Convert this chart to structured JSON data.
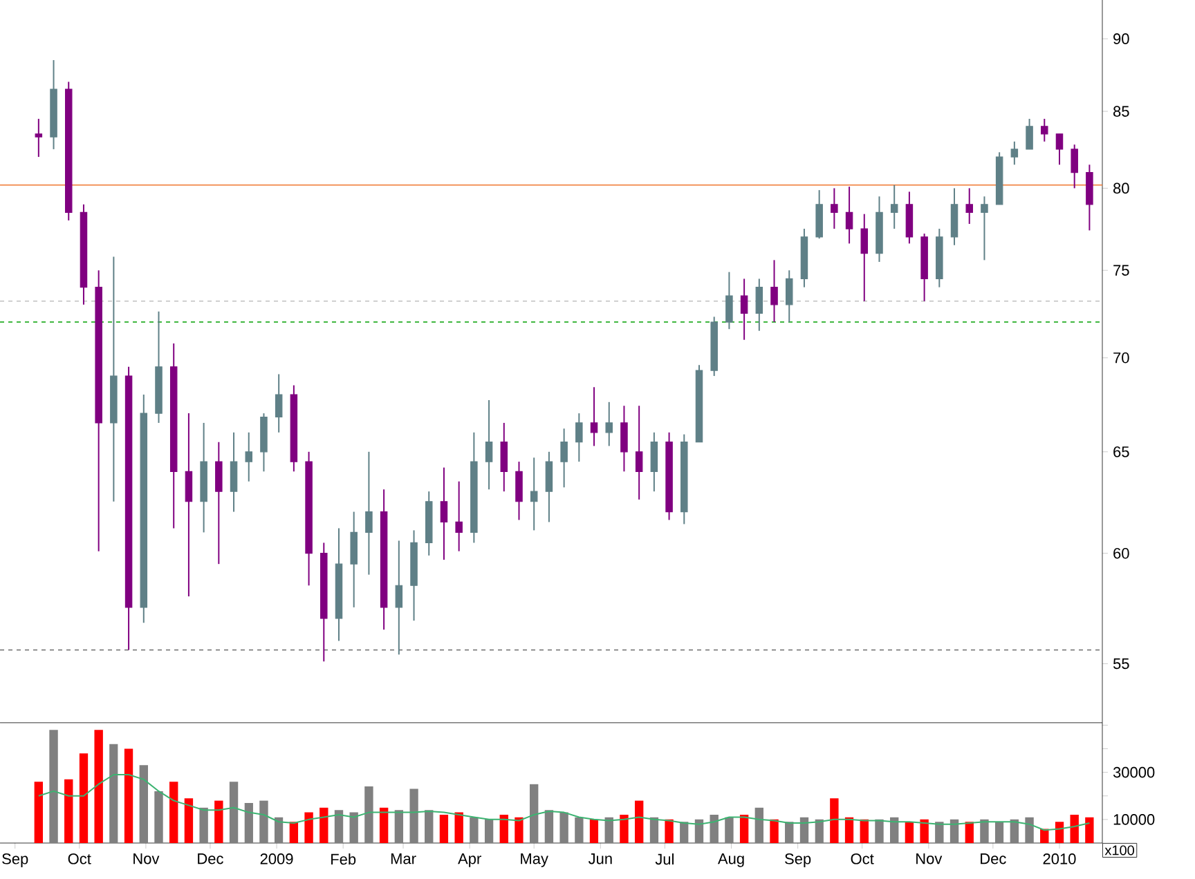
{
  "chart_data": [
    {
      "type": "candlestick",
      "log": "y",
      "tick_labels": "y",
      "x": [
        "2008-09-12",
        "2008-09-19",
        "2008-09-26",
        "2008-10-03",
        "2008-10-10",
        "2008-10-17",
        "2008-10-24",
        "2008-10-31",
        "2008-11-07",
        "2008-11-14",
        "2008-11-21",
        "2008-11-28",
        "2008-12-05",
        "2008-12-12",
        "2008-12-19",
        "2008-12-26",
        "2009-01-02",
        "2009-01-09",
        "2009-01-16",
        "2009-01-23",
        "2009-01-30",
        "2009-02-06",
        "2009-02-13",
        "2009-02-20",
        "2009-02-27",
        "2009-03-06",
        "2009-03-13",
        "2009-03-20",
        "2009-03-27",
        "2009-04-03",
        "2009-04-10",
        "2009-04-17",
        "2009-04-24",
        "2009-05-01",
        "2009-05-08",
        "2009-05-15",
        "2009-05-22",
        "2009-05-29",
        "2009-06-05",
        "2009-06-12",
        "2009-06-19",
        "2009-06-26",
        "2009-07-03",
        "2009-07-10",
        "2009-07-17",
        "2009-07-24",
        "2009-07-31",
        "2009-08-07",
        "2009-08-14",
        "2009-08-21",
        "2009-08-28",
        "2009-09-04",
        "2009-09-11",
        "2009-09-18",
        "2009-09-25",
        "2009-10-02",
        "2009-10-09",
        "2009-10-16",
        "2009-10-23",
        "2009-10-30",
        "2009-11-06",
        "2009-11-13",
        "2009-11-20",
        "2009-11-27",
        "2009-12-04",
        "2009-12-11",
        "2009-12-18",
        "2009-12-25",
        "2010-01-01",
        "2010-01-08",
        "2010-01-15"
      ],
      "ohlc": [
        [
          83.5,
          84.5,
          82,
          83.3
        ],
        [
          83.3,
          88.5,
          82.5,
          86.5
        ],
        [
          86.5,
          87,
          78,
          78.5
        ],
        [
          78.5,
          79,
          73,
          74
        ],
        [
          74,
          75,
          60.1,
          66.5
        ],
        [
          66.5,
          75.8,
          62.5,
          69
        ],
        [
          69,
          69.5,
          55.6,
          57.5
        ],
        [
          57.5,
          68,
          56.8,
          67
        ],
        [
          67,
          72.6,
          66.5,
          69.5
        ],
        [
          69.5,
          70.8,
          61.2,
          64
        ],
        [
          64,
          67,
          58,
          62.5
        ],
        [
          62.5,
          66.5,
          61,
          64.5
        ],
        [
          64.5,
          65.5,
          59.5,
          63
        ],
        [
          63,
          66,
          62,
          64.5
        ],
        [
          64.5,
          66,
          63.5,
          65
        ],
        [
          65,
          67,
          64,
          66.8
        ],
        [
          66.8,
          69.1,
          66,
          68
        ],
        [
          68,
          68.5,
          64,
          64.5
        ],
        [
          64.5,
          65,
          58.5,
          60
        ],
        [
          60,
          60.5,
          55.1,
          57
        ],
        [
          57,
          61.2,
          56,
          59.5
        ],
        [
          59.5,
          62,
          57.5,
          61
        ],
        [
          61,
          65,
          59,
          62
        ],
        [
          62,
          63.1,
          56.5,
          57.5
        ],
        [
          57.5,
          60.6,
          55.4,
          58.5
        ],
        [
          58.5,
          61.1,
          56.9,
          60.5
        ],
        [
          60.5,
          63,
          59.9,
          62.5
        ],
        [
          62.5,
          64.2,
          59.7,
          61.5
        ],
        [
          61.5,
          63.5,
          60.1,
          61
        ],
        [
          61,
          66,
          60.5,
          64.5
        ],
        [
          64.5,
          67.7,
          63.1,
          65.5
        ],
        [
          65.5,
          66.5,
          63,
          64
        ],
        [
          64,
          64.5,
          61.6,
          62.5
        ],
        [
          62.5,
          64.7,
          61.1,
          63
        ],
        [
          63,
          65,
          61.5,
          64.5
        ],
        [
          64.5,
          66.2,
          63.2,
          65.5
        ],
        [
          65.5,
          67,
          64.5,
          66.5
        ],
        [
          66.5,
          68.4,
          65.3,
          66
        ],
        [
          66,
          67.6,
          65.3,
          66.5
        ],
        [
          66.5,
          67.4,
          64,
          65
        ],
        [
          65,
          67.4,
          62.6,
          64
        ],
        [
          64,
          66,
          63,
          65.5
        ],
        [
          65.5,
          66,
          61.6,
          62
        ],
        [
          62,
          65.9,
          61.4,
          65.5
        ],
        [
          65.5,
          69.6,
          65.5,
          69.3
        ],
        [
          69.3,
          72.3,
          69,
          72
        ],
        [
          72,
          74.9,
          71.6,
          73.5
        ],
        [
          73.5,
          74.5,
          71,
          72.5
        ],
        [
          72.5,
          74.5,
          71.5,
          74
        ],
        [
          74,
          75.6,
          72,
          73
        ],
        [
          73,
          75,
          72,
          74.5
        ],
        [
          74.5,
          77.5,
          74,
          77
        ],
        [
          77,
          79.9,
          76.9,
          79
        ],
        [
          79,
          80,
          77.5,
          78.5
        ],
        [
          78.5,
          80.1,
          76.6,
          77.5
        ],
        [
          77.5,
          78.4,
          73.2,
          76
        ],
        [
          76,
          79.5,
          75.5,
          78.5
        ],
        [
          78.5,
          80.2,
          77.5,
          79
        ],
        [
          79,
          79.8,
          76.6,
          77
        ],
        [
          77,
          77.2,
          73.2,
          74.5
        ],
        [
          74.5,
          77.5,
          74,
          77
        ],
        [
          77,
          80,
          76.5,
          79
        ],
        [
          79,
          80,
          77.8,
          78.5
        ],
        [
          78.5,
          79.5,
          75.6,
          79
        ],
        [
          79,
          82.3,
          79,
          82
        ],
        [
          82,
          83,
          81.5,
          82.5
        ],
        [
          82.5,
          84.5,
          82.5,
          84
        ],
        [
          84,
          84.5,
          83,
          83.5
        ],
        [
          83.5,
          83.5,
          81.5,
          82.5
        ],
        [
          82.5,
          82.8,
          80,
          81
        ],
        [
          81,
          81.5,
          77.4,
          79
        ]
      ],
      "colors": [
        "#800080",
        "#5f8087",
        "#800080",
        "#800080",
        "#800080",
        "#5f8087",
        "#800080",
        "#5f8087",
        "#5f8087",
        "#800080",
        "#800080",
        "#5f8087",
        "#800080",
        "#5f8087",
        "#5f8087",
        "#5f8087",
        "#5f8087",
        "#800080",
        "#800080",
        "#800080",
        "#5f8087",
        "#5f8087",
        "#5f8087",
        "#800080",
        "#5f8087",
        "#5f8087",
        "#5f8087",
        "#800080",
        "#800080",
        "#5f8087",
        "#5f8087",
        "#800080",
        "#800080",
        "#5f8087",
        "#5f8087",
        "#5f8087",
        "#5f8087",
        "#800080",
        "#5f8087",
        "#800080",
        "#800080",
        "#5f8087",
        "#800080",
        "#5f8087",
        "#5f8087",
        "#5f8087",
        "#5f8087",
        "#800080",
        "#5f8087",
        "#800080",
        "#5f8087",
        "#5f8087",
        "#5f8087",
        "#800080",
        "#800080",
        "#800080",
        "#5f8087",
        "#5f8087",
        "#800080",
        "#800080",
        "#5f8087",
        "#5f8087",
        "#800080",
        "#5f8087",
        "#5f8087",
        "#5f8087",
        "#5f8087",
        "#800080",
        "#800080",
        "#800080",
        "#800080"
      ],
      "xlim": [
        "2008-08-25",
        "2010-01-21"
      ],
      "ylim": [
        52.5,
        92.8
      ],
      "yticks": [
        55,
        60,
        65,
        70,
        75,
        80,
        85,
        90
      ],
      "ref_lines": [
        {
          "axis": "y",
          "value": 80.2,
          "color": "#f07830",
          "line_style": "solid"
        },
        {
          "axis": "y",
          "value": 72,
          "color": "#00a000",
          "line_style": "dashed"
        },
        {
          "axis": "y",
          "value": 55.6,
          "color": "#606060",
          "line_style": "dashed"
        },
        {
          "axis": "y",
          "value": 73.2,
          "color": "#c0c0c0",
          "line_style": "dashed"
        }
      ]
    },
    {
      "type": "bar",
      "x": [
        "2008-09-12",
        "2008-09-19",
        "2008-09-26",
        "2008-10-03",
        "2008-10-10",
        "2008-10-17",
        "2008-10-24",
        "2008-10-31",
        "2008-11-07",
        "2008-11-14",
        "2008-11-21",
        "2008-11-28",
        "2008-12-05",
        "2008-12-12",
        "2008-12-19",
        "2008-12-26",
        "2009-01-02",
        "2009-01-09",
        "2009-01-16",
        "2009-01-23",
        "2009-01-30",
        "2009-02-06",
        "2009-02-13",
        "2009-02-20",
        "2009-02-27",
        "2009-03-06",
        "2009-03-13",
        "2009-03-20",
        "2009-03-27",
        "2009-04-03",
        "2009-04-10",
        "2009-04-17",
        "2009-04-24",
        "2009-05-01",
        "2009-05-08",
        "2009-05-15",
        "2009-05-22",
        "2009-05-29",
        "2009-06-05",
        "2009-06-12",
        "2009-06-19",
        "2009-06-26",
        "2009-07-03",
        "2009-07-10",
        "2009-07-17",
        "2009-07-24",
        "2009-07-31",
        "2009-08-07",
        "2009-08-14",
        "2009-08-21",
        "2009-08-28",
        "2009-09-04",
        "2009-09-11",
        "2009-09-18",
        "2009-09-25",
        "2009-10-02",
        "2009-10-09",
        "2009-10-16",
        "2009-10-23",
        "2009-10-30",
        "2009-11-06",
        "2009-11-13",
        "2009-11-20",
        "2009-11-27",
        "2009-12-04",
        "2009-12-11",
        "2009-12-18",
        "2009-12-25",
        "2010-01-01",
        "2010-01-08",
        "2010-01-15"
      ],
      "xlim": [
        "2008-08-25",
        "2010-01-21"
      ],
      "xticks": [
        {
          "value": "2008-09-01",
          "label": "Sep"
        },
        {
          "value": "2008-10-01",
          "label": "Oct"
        },
        {
          "value": "2008-11-01",
          "label": "Nov"
        },
        {
          "value": "2008-12-01",
          "label": "Dec"
        },
        {
          "value": "2009-01-01",
          "label": "2009"
        },
        {
          "value": "2009-02-01",
          "label": "Feb"
        },
        {
          "value": "2009-03-01",
          "label": "Mar"
        },
        {
          "value": "2009-04-01",
          "label": "Apr"
        },
        {
          "value": "2009-05-01",
          "label": "May"
        },
        {
          "value": "2009-06-01",
          "label": "Jun"
        },
        {
          "value": "2009-07-01",
          "label": "Jul"
        },
        {
          "value": "2009-08-01",
          "label": "Aug"
        },
        {
          "value": "2009-09-01",
          "label": "Sep"
        },
        {
          "value": "2009-10-01",
          "label": "Oct"
        },
        {
          "value": "2009-11-01",
          "label": "Nov"
        },
        {
          "value": "2009-12-01",
          "label": "Dec"
        },
        {
          "value": "2010-01-01",
          "label": "2010"
        }
      ],
      "ylim": [
        0,
        51000
      ],
      "yticks": [
        10000,
        {
          "value": 20000,
          "label": null
        },
        30000,
        {
          "value": 40000,
          "label": null
        },
        {
          "value": 50000,
          "label": null
        }
      ],
      "annotations": [
        "x100"
      ],
      "series": [
        {
          "type": "bar",
          "values": [
            26000,
            48000,
            27000,
            38000,
            48000,
            42000,
            40000,
            33000,
            22000,
            26000,
            19000,
            15000,
            18000,
            26000,
            17000,
            18000,
            11000,
            9000,
            13000,
            15000,
            14000,
            13000,
            24000,
            15000,
            14000,
            23000,
            14000,
            12000,
            13000,
            11000,
            10000,
            12000,
            11000,
            25000,
            14000,
            13000,
            11000,
            10000,
            11000,
            12000,
            18000,
            11000,
            10000,
            9000,
            10000,
            12000,
            11000,
            12000,
            15000,
            10000,
            9000,
            11000,
            10000,
            19000,
            11000,
            10000,
            10000,
            11000,
            9000,
            10000,
            9000,
            10000,
            9000,
            10000,
            9000,
            10000,
            11000,
            6000,
            9000,
            12000,
            11000
          ],
          "colors": [
            "#ff0000",
            "#808080",
            "#ff0000",
            "#ff0000",
            "#ff0000",
            "#808080",
            "#ff0000",
            "#808080",
            "#808080",
            "#ff0000",
            "#ff0000",
            "#808080",
            "#ff0000",
            "#808080",
            "#808080",
            "#808080",
            "#808080",
            "#ff0000",
            "#ff0000",
            "#ff0000",
            "#808080",
            "#808080",
            "#808080",
            "#ff0000",
            "#808080",
            "#808080",
            "#808080",
            "#ff0000",
            "#ff0000",
            "#808080",
            "#808080",
            "#ff0000",
            "#ff0000",
            "#808080",
            "#808080",
            "#808080",
            "#808080",
            "#ff0000",
            "#808080",
            "#ff0000",
            "#ff0000",
            "#808080",
            "#ff0000",
            "#808080",
            "#808080",
            "#808080",
            "#808080",
            "#ff0000",
            "#808080",
            "#ff0000",
            "#808080",
            "#808080",
            "#808080",
            "#ff0000",
            "#ff0000",
            "#ff0000",
            "#808080",
            "#808080",
            "#ff0000",
            "#ff0000",
            "#808080",
            "#808080",
            "#ff0000",
            "#808080",
            "#808080",
            "#808080",
            "#808080",
            "#ff0000",
            "#ff0000",
            "#ff0000",
            "#ff0000"
          ]
        },
        {
          "type": "line",
          "color": "#3cb371",
          "values": [
            20000,
            22000,
            20000,
            20000,
            25000,
            29000,
            29000,
            27000,
            22000,
            18000,
            16000,
            14000,
            14000,
            15000,
            13000,
            12000,
            9000,
            8500,
            10000,
            11000,
            12000,
            11000,
            13000,
            13000,
            13000,
            13000,
            13500,
            13000,
            12000,
            11000,
            10000,
            10000,
            9500,
            12000,
            13500,
            13000,
            11000,
            10000,
            9500,
            10000,
            11000,
            10000,
            9500,
            8500,
            8000,
            9000,
            11000,
            11000,
            10000,
            9500,
            8500,
            8500,
            9000,
            10000,
            10000,
            9500,
            9500,
            9000,
            9000,
            8500,
            8000,
            8000,
            8500,
            9000,
            9000,
            9000,
            8000,
            5500,
            6000,
            7000,
            8500
          ]
        }
      ]
    }
  ]
}
